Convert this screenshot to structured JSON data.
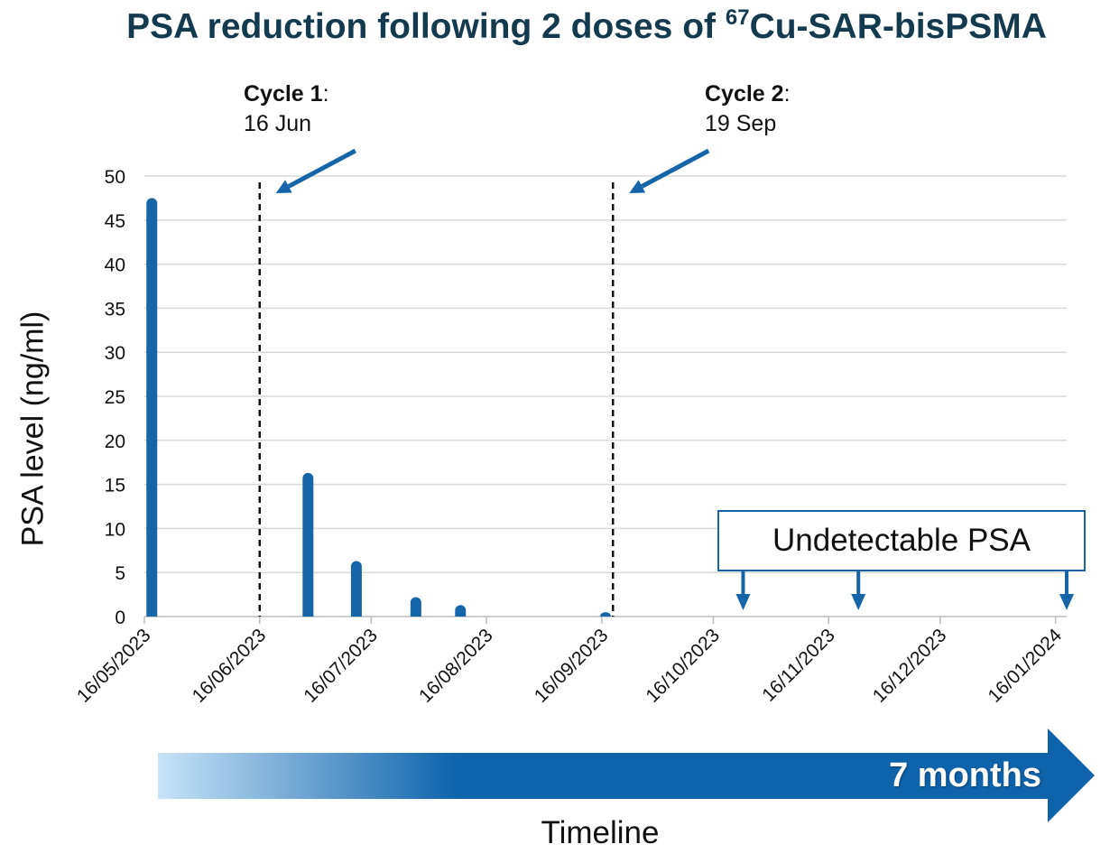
{
  "title_main": "PSA reduction following 2 doses of ",
  "title_sup": "67",
  "title_rest": "Cu-SAR-bisPSMA",
  "colors": {
    "bar": "#1565a8",
    "grid": "#d9d9d9",
    "title": "#143a4e",
    "arrow_start": "#c8e3f7",
    "arrow_end": "#0e63ab"
  },
  "annotations": {
    "cycle1": {
      "label": "Cycle 1",
      "colon": ":",
      "date": "16 Jun"
    },
    "cycle2": {
      "label": "Cycle 2",
      "colon": ":",
      "date": "19 Sep"
    },
    "undetectable": "Undetectable PSA"
  },
  "timeline": {
    "label": "Timeline",
    "duration": "7 months"
  },
  "chart_data": {
    "type": "bar",
    "ylabel": "PSA level (ng/ml)",
    "ylim": [
      0,
      50
    ],
    "yticks": [
      0,
      5,
      10,
      15,
      20,
      25,
      30,
      35,
      40,
      45,
      50
    ],
    "grid": true,
    "x_axis": {
      "type": "date",
      "range": [
        "2023-05-16",
        "2024-01-19"
      ],
      "tick_dates": [
        "2023-05-16",
        "2023-06-16",
        "2023-07-16",
        "2023-08-16",
        "2023-09-16",
        "2023-10-16",
        "2023-11-16",
        "2023-12-16",
        "2024-01-16"
      ],
      "tick_labels": [
        "16/05/2023",
        "16/06/2023",
        "16/07/2023",
        "16/08/2023",
        "16/09/2023",
        "16/10/2023",
        "16/11/2023",
        "16/12/2023",
        "16/01/2024"
      ]
    },
    "points": [
      {
        "date": "2023-05-18",
        "value": 47.5
      },
      {
        "date": "2023-06-29",
        "value": 16.3
      },
      {
        "date": "2023-07-12",
        "value": 6.3
      },
      {
        "date": "2023-07-28",
        "value": 2.2
      },
      {
        "date": "2023-08-09",
        "value": 1.3
      },
      {
        "date": "2023-09-17",
        "value": 0.5
      }
    ],
    "dose_lines": [
      {
        "date": "2023-06-16",
        "label": "Cycle 1"
      },
      {
        "date": "2023-09-19",
        "label": "Cycle 2"
      }
    ],
    "undetectable_dates": [
      "2023-10-24",
      "2023-11-24",
      "2024-01-19"
    ]
  }
}
